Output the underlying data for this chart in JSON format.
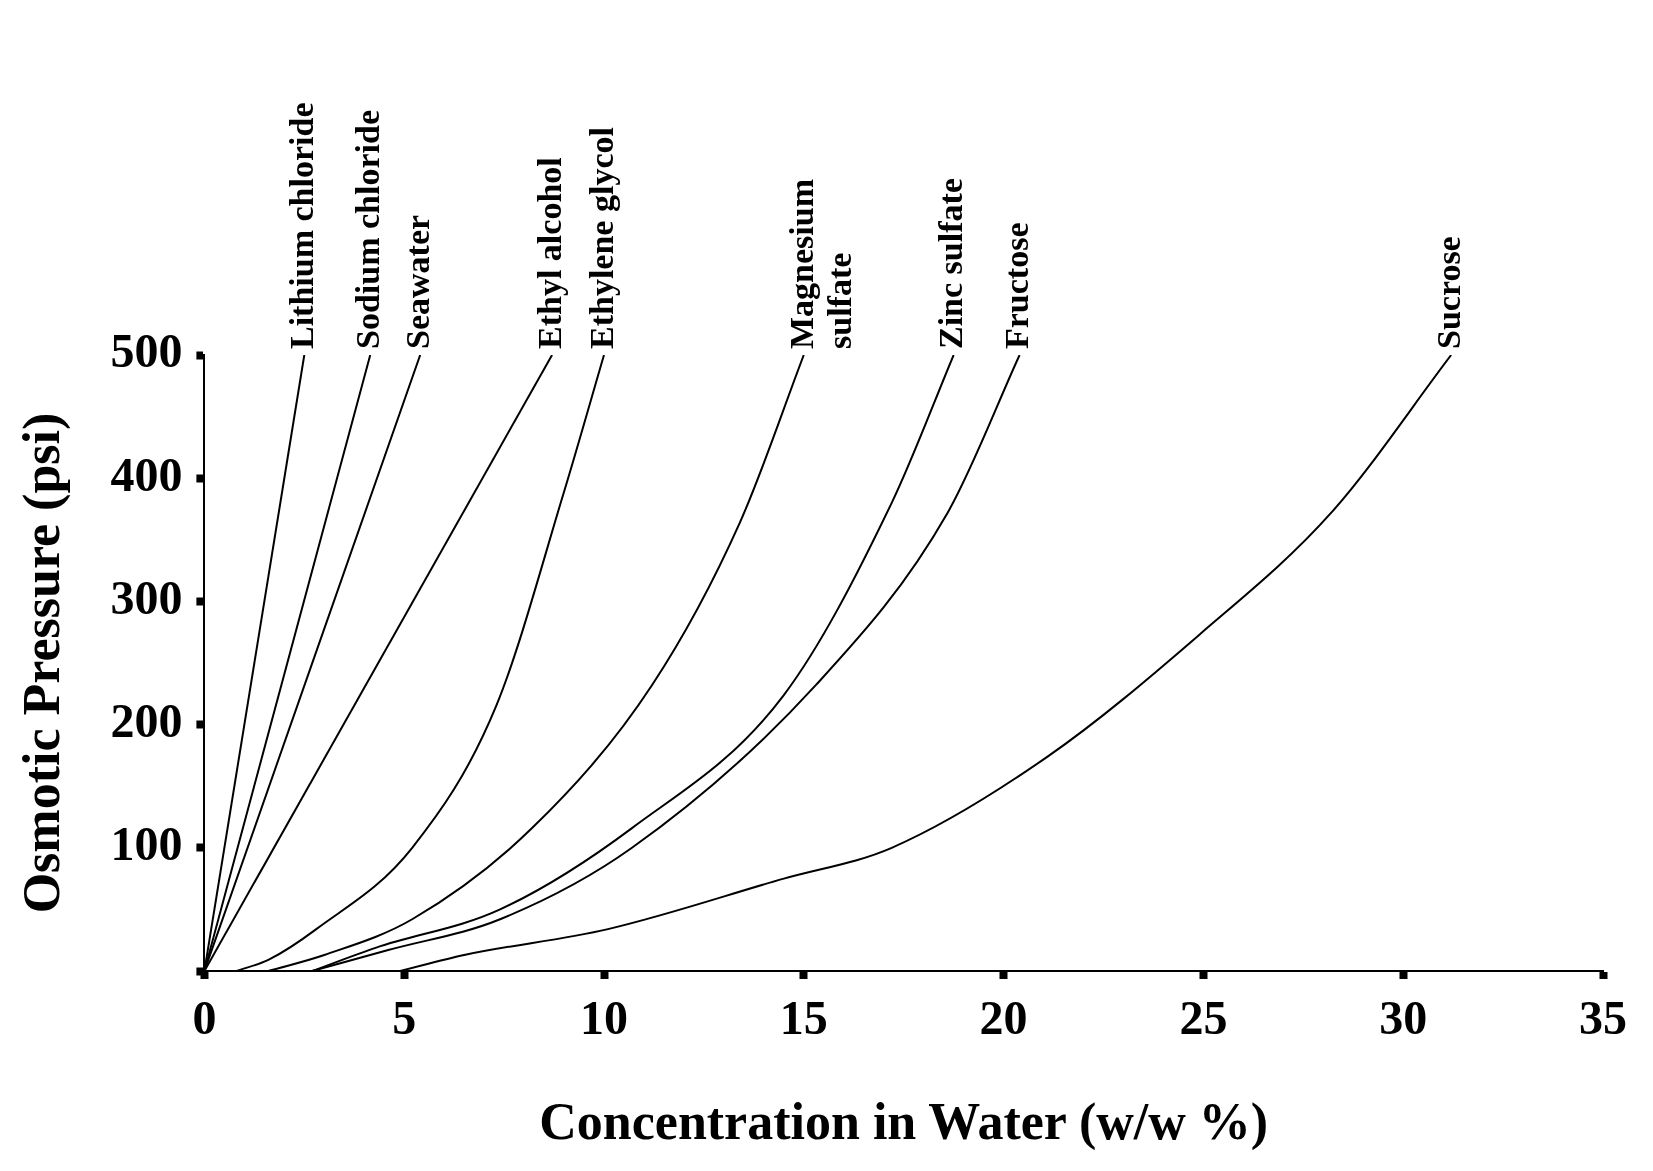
{
  "chart_data": {
    "type": "line",
    "xlabel": "Concentration in Water (w/w %)",
    "ylabel": "Osmotic Pressure (psi)",
    "xlim": [
      0,
      35
    ],
    "ylim": [
      0,
      500
    ],
    "xticks": [
      0,
      5,
      10,
      15,
      20,
      25,
      30,
      35
    ],
    "yticks": [
      {
        "value": 0,
        "label": null
      },
      100,
      200,
      300,
      400,
      500
    ],
    "grid": false,
    "legend": false,
    "line_style": "solid",
    "series": [
      {
        "name": "Lithium chloride",
        "color": "#000000",
        "x": [
          0,
          2.5
        ],
        "values": [
          0,
          500
        ]
      },
      {
        "name": "Sodium chloride",
        "color": "#000000",
        "x": [
          0,
          4.15
        ],
        "values": [
          0,
          500
        ]
      },
      {
        "name": "Seawater",
        "color": "#000000",
        "x": [
          0,
          5.4
        ],
        "values": [
          0,
          500
        ]
      },
      {
        "name": "Ethyl alcohol",
        "color": "#000000",
        "x": [
          0,
          8.7
        ],
        "values": [
          0,
          500
        ]
      },
      {
        "name": "Ethylene glycol",
        "color": "#000000",
        "x": [
          0.8,
          1.6,
          2.8,
          5.2,
          7.3,
          9.0,
          10.0
        ],
        "values": [
          0,
          9,
          34,
          100,
          215,
          389,
          500
        ]
      },
      {
        "name": "Magnesium\nsulfate",
        "color": "#000000",
        "x": [
          1.6,
          3.0,
          5.2,
          8.2,
          11.2,
          13.4,
          15.0
        ],
        "values": [
          0,
          13,
          42,
          116,
          232,
          364,
          500
        ]
      },
      {
        "name": "Zinc sulfate",
        "color": "#000000",
        "x": [
          2.7,
          4.3,
          7.4,
          10.7,
          14.5,
          17.2,
          18.75
        ],
        "values": [
          0,
          19,
          50,
          116,
          224,
          380,
          500
        ]
      },
      {
        "name": "Fructose",
        "color": "#000000",
        "x": [
          2.7,
          4.6,
          7.4,
          10.7,
          15.3,
          18.6,
          20.4
        ],
        "values": [
          0,
          17,
          42,
          100,
          232,
          372,
          500
        ]
      },
      {
        "name": "Sucrose",
        "color": "#000000",
        "x": [
          4.9,
          6.5,
          10.1,
          14.5,
          17.2,
          21.1,
          24.9,
          28.2,
          31.2
        ],
        "values": [
          0,
          13,
          34,
          75,
          100,
          174,
          273,
          372,
          500
        ]
      }
    ]
  }
}
